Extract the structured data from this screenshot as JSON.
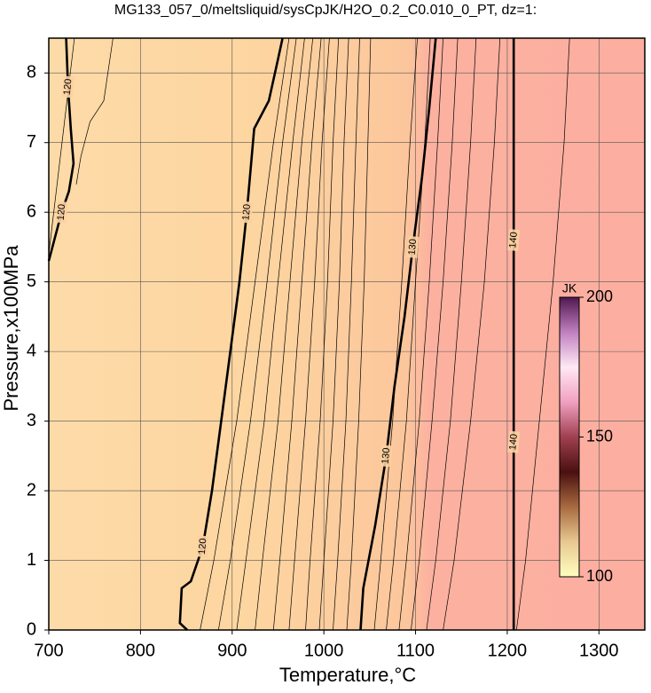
{
  "chart_data": {
    "type": "contour",
    "title": "MG133_057_0/meltsliquid/sysCpJK/H2O_0.2_C0.010_0_PT, dz=1:",
    "x_label": "Temperature,°C",
    "y_label": "Pressure,x100MPa",
    "xlim": [
      700,
      1350
    ],
    "ylim": [
      0,
      8.5
    ],
    "xticks": [
      700,
      800,
      900,
      1000,
      1100,
      1200,
      1300
    ],
    "yticks": [
      0,
      1,
      2,
      3,
      4,
      5,
      6,
      7,
      8
    ],
    "grid": true,
    "background_colors": [
      "#fddba8",
      "#fdd5a0",
      "#fcc69c",
      "#fcb1a0",
      "#fcaea0"
    ],
    "contours": [
      {
        "level": 120,
        "x": [
          719,
          721,
          724,
          727,
          722,
          714,
          706,
          700
        ],
        "y": [
          8.5,
          7.8,
          7.2,
          6.7,
          6.3,
          6.0,
          5.6,
          5.3
        ]
      },
      {
        "level": 120,
        "x": [
          851,
          843,
          845,
          855,
          868,
          878,
          888,
          898,
          908,
          916,
          924,
          940,
          950,
          955
        ],
        "y": [
          0,
          0.1,
          0.6,
          0.7,
          1.2,
          2.0,
          3.0,
          4.0,
          5.0,
          6.0,
          7.2,
          7.6,
          8.2,
          8.5
        ]
      },
      {
        "level": 130,
        "x": [
          1040,
          1043,
          1056,
          1068,
          1077,
          1088,
          1097,
          1107,
          1115,
          1122
        ],
        "y": [
          0,
          0.6,
          1.5,
          2.5,
          3.5,
          4.5,
          5.5,
          6.5,
          7.5,
          8.5
        ]
      },
      {
        "level": 140,
        "x": [
          1207,
          1207
        ],
        "y": [
          0,
          8.5
        ]
      }
    ],
    "minor_contours": [
      {
        "x": [
          728,
          700
        ],
        "y": [
          8.5,
          5.4
        ]
      },
      {
        "x": [
          770,
          760,
          745,
          735,
          730
        ],
        "y": [
          8.5,
          7.6,
          7.3,
          6.8,
          6.4
        ]
      },
      {
        "x": [
          865,
          880,
          905,
          925,
          945,
          962
        ],
        "y": [
          0,
          1.0,
          3.0,
          5.0,
          7.0,
          8.5
        ]
      },
      {
        "x": [
          885,
          898,
          920,
          938,
          955,
          970
        ],
        "y": [
          0,
          1.0,
          3.0,
          5.0,
          7.0,
          8.5
        ]
      },
      {
        "x": [
          905,
          915,
          935,
          950,
          966,
          979
        ],
        "y": [
          0,
          1.0,
          3.0,
          5.0,
          7.0,
          8.5
        ]
      },
      {
        "x": [
          925,
          933,
          950,
          963,
          976,
          988
        ],
        "y": [
          0,
          1.0,
          3.0,
          5.0,
          7.0,
          8.5
        ]
      },
      {
        "x": [
          945,
          952,
          965,
          976,
          987,
          997
        ],
        "y": [
          0,
          1.0,
          3.0,
          5.0,
          7.0,
          8.5
        ]
      },
      {
        "x": [
          962,
          968,
          980,
          990,
          998,
          1006
        ],
        "y": [
          0,
          1.0,
          3.0,
          5.0,
          7.0,
          8.5
        ]
      },
      {
        "x": [
          980,
          985,
          996,
          1004,
          1010,
          1016
        ],
        "y": [
          0,
          1.0,
          3.0,
          5.0,
          7.0,
          8.5
        ]
      },
      {
        "x": [
          995,
          1000,
          1010,
          1017,
          1022,
          1027
        ],
        "y": [
          0,
          1.0,
          3.0,
          5.0,
          7.0,
          8.5
        ]
      },
      {
        "x": [
          1010,
          1015,
          1024,
          1030,
          1035,
          1039
        ],
        "y": [
          0,
          1.0,
          3.0,
          5.0,
          7.0,
          8.5
        ]
      },
      {
        "x": [
          1025,
          1030,
          1038,
          1044,
          1048,
          1051
        ],
        "y": [
          0,
          1.0,
          3.0,
          5.0,
          7.0,
          8.5
        ]
      },
      {
        "x": [
          1055,
          1062,
          1075,
          1085,
          1094,
          1102
        ],
        "y": [
          0,
          1.0,
          3.0,
          5.0,
          7.0,
          8.5
        ]
      },
      {
        "x": [
          1068,
          1076,
          1090,
          1100,
          1110,
          1116
        ],
        "y": [
          0,
          1.0,
          3.0,
          5.0,
          7.0,
          8.5
        ]
      },
      {
        "x": [
          1082,
          1090,
          1104,
          1115,
          1124,
          1130
        ],
        "y": [
          0,
          1.0,
          3.0,
          5.0,
          7.0,
          8.5
        ]
      },
      {
        "x": [
          1095,
          1104,
          1118,
          1130,
          1140,
          1146
        ],
        "y": [
          0,
          1.0,
          3.0,
          5.0,
          7.0,
          8.5
        ]
      },
      {
        "x": [
          1112,
          1122,
          1138,
          1150,
          1160,
          1166
        ],
        "y": [
          0,
          1.0,
          3.0,
          5.0,
          7.0,
          8.5
        ]
      },
      {
        "x": [
          1130,
          1142,
          1160,
          1175,
          1186,
          1192
        ],
        "y": [
          0,
          1.0,
          3.0,
          5.0,
          7.0,
          8.5
        ]
      },
      {
        "x": [
          1210,
          1220,
          1235,
          1250,
          1262,
          1268
        ],
        "y": [
          0,
          1.0,
          3.0,
          5.0,
          7.0,
          8.5
        ]
      }
    ],
    "colorbar": {
      "label": "JK",
      "lim": [
        100,
        200
      ],
      "ticks": [
        100,
        150,
        200
      ],
      "colors": [
        "#ffffc0",
        "#e8c890",
        "#a86a40",
        "#4a1010",
        "#a04050",
        "#f0a0c0",
        "#ffe8f4",
        "#c080c0",
        "#501850"
      ]
    }
  }
}
